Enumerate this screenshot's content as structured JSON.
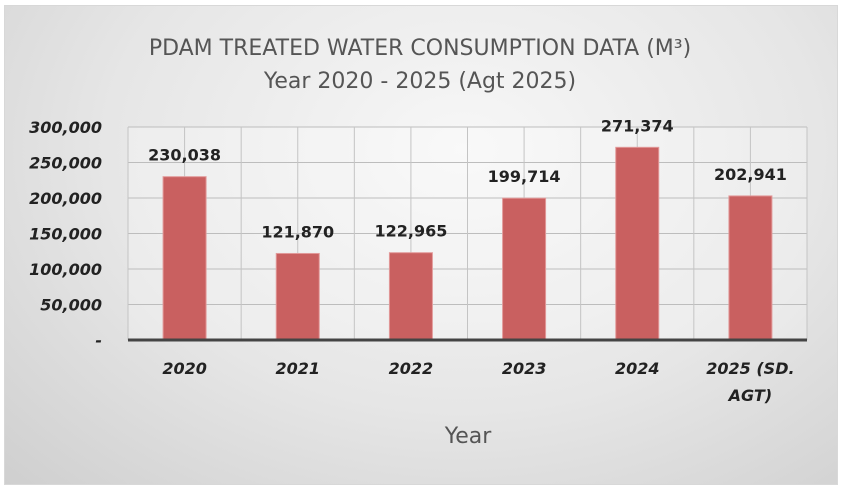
{
  "chart_data": {
    "type": "bar",
    "title": "PDAM TREATED WATER CONSUMPTION DATA (M³)",
    "subtitle": "Year 2020 - 2025 (Agt 2025)",
    "xlabel": "Year",
    "ylabel": "",
    "categories": [
      "2020",
      "2021",
      "2022",
      "2023",
      "2024",
      "2025 (SD. AGT)"
    ],
    "category_lines": [
      [
        "2020"
      ],
      [
        "2021"
      ],
      [
        "2022"
      ],
      [
        "2023"
      ],
      [
        "2024"
      ],
      [
        "2025 (SD.",
        "AGT)"
      ]
    ],
    "values": [
      230038,
      121870,
      122965,
      199714,
      271374,
      202941
    ],
    "data_labels": [
      "230,038",
      "121,870",
      "122,965",
      "199,714",
      "271,374",
      "202,941"
    ],
    "ylim": [
      0,
      300000
    ],
    "yticks": [
      0,
      50000,
      100000,
      150000,
      200000,
      250000,
      300000
    ],
    "ytick_labels": [
      "-",
      "50,000",
      "100,000",
      "150,000",
      "200,000",
      "250,000",
      "300,000"
    ],
    "grid": true,
    "legend": "none",
    "bar_color": "#c96060"
  }
}
